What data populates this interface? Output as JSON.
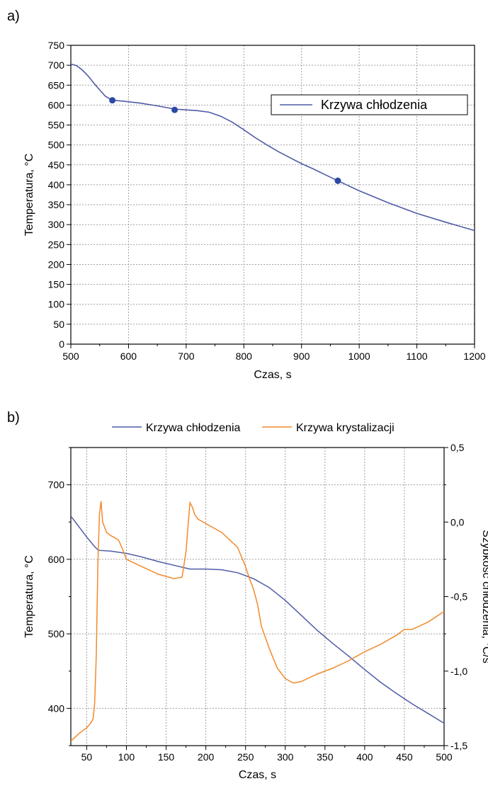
{
  "panel_labels": [
    "a)",
    "b)"
  ],
  "colors": {
    "blue": "#4f5ba6",
    "orange": "#f18a2b",
    "grid": "#a0a0a0",
    "axis": "#000000"
  },
  "chart_data": [
    {
      "type": "line",
      "panel": "a)",
      "xlabel": "Czas, s",
      "ylabel": "Temperatura, °C",
      "xlim": [
        500,
        1200
      ],
      "ylim": [
        0,
        750
      ],
      "xticks": [
        500,
        600,
        700,
        800,
        900,
        1000,
        1100,
        1200
      ],
      "xtick_labels": [
        "500",
        "600",
        "700",
        "800",
        "900",
        "1000",
        "1100",
        "1200"
      ],
      "yticks": [
        0,
        50,
        100,
        150,
        200,
        250,
        300,
        350,
        400,
        450,
        500,
        550,
        600,
        650,
        700,
        750
      ],
      "ytick_labels": [
        "0",
        "50",
        "100",
        "150",
        "200",
        "250",
        "300",
        "350",
        "400",
        "450",
        "500",
        "550",
        "600",
        "650",
        "700",
        "750"
      ],
      "grid": true,
      "legend_position": "top-right",
      "series": [
        {
          "name": "Krzywa chłodzenia",
          "color": "#4f5ba6",
          "x": [
            500,
            510,
            520,
            530,
            540,
            550,
            560,
            572,
            590,
            620,
            650,
            680,
            700,
            720,
            740,
            760,
            780,
            800,
            820,
            840,
            860,
            880,
            900,
            920,
            940,
            963,
            1000,
            1050,
            1100,
            1150,
            1200
          ],
          "y": [
            703,
            699,
            688,
            673,
            655,
            638,
            622,
            612,
            610,
            605,
            598,
            590,
            588,
            586,
            582,
            572,
            557,
            538,
            518,
            500,
            483,
            468,
            453,
            440,
            426,
            410,
            385,
            355,
            328,
            306,
            285
          ]
        }
      ],
      "markers": {
        "x": [
          572,
          680,
          963
        ],
        "y": [
          612,
          588,
          410
        ]
      }
    },
    {
      "type": "line",
      "panel": "b)",
      "xlabel": "Czas, s",
      "ylabel": "Temperatura, °C",
      "y2label": "Szybkość chłodzenia, °C/s",
      "xlim": [
        30,
        500
      ],
      "ylim": [
        350,
        750
      ],
      "y2lim": [
        -1.5,
        0.5
      ],
      "xticks": [
        50,
        100,
        150,
        200,
        250,
        300,
        350,
        400,
        450,
        500
      ],
      "xtick_labels": [
        "50",
        "100",
        "150",
        "200",
        "250",
        "300",
        "350",
        "400",
        "450",
        "500"
      ],
      "yticks": [
        400,
        500,
        600,
        700
      ],
      "ytick_labels": [
        "400",
        "500",
        "600",
        "700"
      ],
      "y2ticks": [
        -1.5,
        -1.0,
        -0.5,
        0.0,
        0.5
      ],
      "y2tick_labels": [
        "-1,5",
        "-1,0",
        "-0,5",
        "0,0",
        "0,5"
      ],
      "grid": true,
      "legend_position": "top",
      "series": [
        {
          "name": "Krzywa chłodzenia",
          "color": "#4f5ba6",
          "axis": "left",
          "x": [
            30,
            40,
            50,
            60,
            65,
            80,
            100,
            120,
            140,
            160,
            180,
            200,
            220,
            240,
            260,
            280,
            300,
            320,
            340,
            360,
            380,
            400,
            420,
            440,
            460,
            480,
            500
          ],
          "y": [
            658,
            644,
            630,
            617,
            612,
            611,
            608,
            603,
            597,
            592,
            587,
            587,
            586,
            582,
            574,
            562,
            545,
            525,
            505,
            487,
            470,
            452,
            435,
            420,
            406,
            393,
            380
          ]
        },
        {
          "name": "Krzywa krystalizacji",
          "color": "#f18a2b",
          "axis": "right",
          "x": [
            30,
            40,
            50,
            55,
            58,
            60,
            62,
            64,
            66,
            68,
            70,
            75,
            80,
            90,
            95,
            100,
            120,
            140,
            160,
            170,
            175,
            178,
            180,
            183,
            186,
            190,
            200,
            220,
            240,
            250,
            255,
            260,
            265,
            270,
            280,
            290,
            300,
            310,
            320,
            340,
            360,
            380,
            400,
            420,
            440,
            450,
            460,
            480,
            500
          ],
          "y": [
            -1.47,
            -1.42,
            -1.38,
            -1.35,
            -1.32,
            -1.22,
            -0.9,
            -0.3,
            0.05,
            0.14,
            0.0,
            -0.07,
            -0.09,
            -0.12,
            -0.18,
            -0.25,
            -0.3,
            -0.35,
            -0.38,
            -0.37,
            -0.2,
            0.0,
            0.13,
            0.1,
            0.05,
            0.02,
            -0.01,
            -0.07,
            -0.17,
            -0.3,
            -0.38,
            -0.45,
            -0.55,
            -0.7,
            -0.85,
            -0.98,
            -1.05,
            -1.08,
            -1.07,
            -1.02,
            -0.98,
            -0.93,
            -0.87,
            -0.82,
            -0.76,
            -0.72,
            -0.72,
            -0.67,
            -0.6
          ]
        }
      ]
    }
  ]
}
